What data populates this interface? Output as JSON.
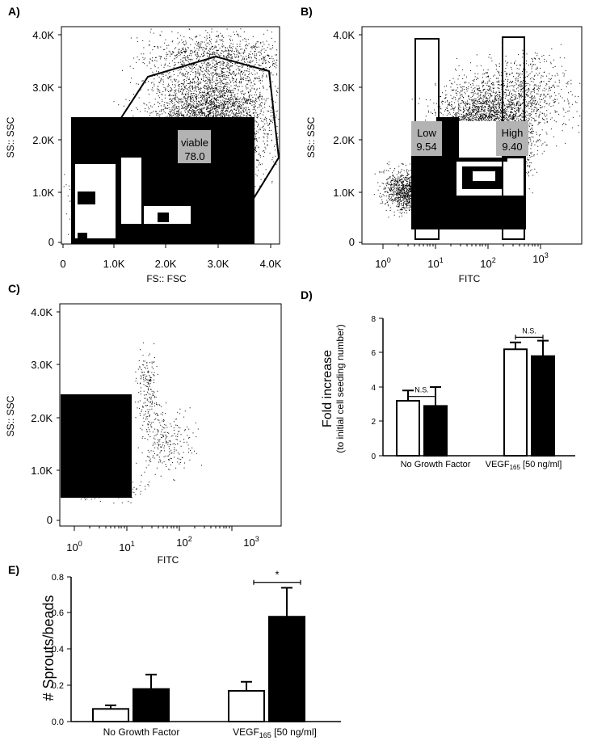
{
  "panels": {
    "A": {
      "label": "A)",
      "ylabel": "SS:: SSC",
      "xlabel": "FS:: FSC",
      "yticks": [
        "4.0K",
        "3.0K",
        "2.0K",
        "1.0K",
        "0"
      ],
      "xticks": [
        "0",
        "1.0K",
        "2.0K",
        "3.0K",
        "4.0K"
      ],
      "gate": {
        "name": "viable",
        "value": "78.0"
      }
    },
    "B": {
      "label": "B)",
      "ylabel": "SS:: SSC",
      "xlabel": "FITC",
      "yticks": [
        "4.0K",
        "3.0K",
        "2.0K",
        "1.0K",
        "0"
      ],
      "xticks": [
        {
          "base": "10",
          "exp": "0"
        },
        {
          "base": "10",
          "exp": "1"
        },
        {
          "base": "10",
          "exp": "2"
        },
        {
          "base": "10",
          "exp": "3"
        }
      ],
      "gates": [
        {
          "name": "Low",
          "value": "9.54"
        },
        {
          "name": "High",
          "value": "9.40"
        }
      ]
    },
    "C": {
      "label": "C)",
      "ylabel": "SS:: SSC",
      "xlabel": "FITC",
      "yticks": [
        "4.0K",
        "3.0K",
        "2.0K",
        "1.0K",
        "0"
      ],
      "xticks": [
        {
          "base": "10",
          "exp": "0"
        },
        {
          "base": "10",
          "exp": "1"
        },
        {
          "base": "10",
          "exp": "2"
        },
        {
          "base": "10",
          "exp": "3"
        }
      ]
    },
    "D": {
      "label": "D)",
      "ylabel_main": "Fold increase",
      "ylabel_sub": "(to initial cell seeding number)",
      "yticks": [
        "8",
        "6",
        "4",
        "2",
        "0"
      ],
      "cat1": "No Growth Factor",
      "cat2_main": "VEGF",
      "cat2_sub": "165",
      "cat2_tail": " [50 ng/ml]",
      "sig": [
        "N.S.",
        "N.S."
      ]
    },
    "E": {
      "label": "E)",
      "ylabel": "# Sprouts/beads",
      "yticks": [
        "0.8",
        "0.6",
        "0.4",
        "0.2",
        "0.0"
      ],
      "cat1": "No Growth Factor",
      "cat2_main": "VEGF",
      "cat2_sub": "165",
      "cat2_tail": " [50 ng/ml]",
      "sig": "*"
    }
  },
  "chart_data": [
    {
      "type": "scatter",
      "panel": "A",
      "xlabel": "FS:: FSC",
      "ylabel": "SS:: SSC",
      "xlim": [
        0,
        4100
      ],
      "ylim": [
        0,
        4100
      ],
      "gate": {
        "name": "viable",
        "percent": 78.0
      }
    },
    {
      "type": "scatter",
      "panel": "B",
      "xlabel": "FITC",
      "ylabel": "SS:: SSC",
      "xscale": "log",
      "xlim": [
        0.5,
        4000
      ],
      "ylim": [
        0,
        4100
      ],
      "gates": [
        {
          "name": "Low",
          "percent": 9.54
        },
        {
          "name": "High",
          "percent": 9.4
        }
      ]
    },
    {
      "type": "scatter",
      "panel": "C",
      "xlabel": "FITC",
      "ylabel": "SS:: SSC",
      "xscale": "log",
      "xlim": [
        0.5,
        4000
      ],
      "ylim": [
        0,
        4100
      ]
    },
    {
      "type": "bar",
      "panel": "D",
      "categories": [
        "No Growth Factor",
        "VEGF165 [50 ng/ml]"
      ],
      "ylabel": "Fold increase (to initial cell seeding number)",
      "ylim": [
        0,
        8
      ],
      "series": [
        {
          "color": "#ffffff",
          "values": [
            3.2,
            6.2
          ],
          "errors": [
            0.6,
            0.4
          ]
        },
        {
          "color": "#000000",
          "values": [
            2.9,
            5.8
          ],
          "errors": [
            1.1,
            0.9
          ]
        }
      ],
      "annotations": [
        {
          "text": "N.S.",
          "category": 0,
          "y": 3.45
        },
        {
          "text": "N.S.",
          "category": 1,
          "y": 6.9
        }
      ]
    },
    {
      "type": "bar",
      "panel": "E",
      "categories": [
        "No Growth Factor",
        "VEGF165 [50 ng/ml]"
      ],
      "ylabel": "# Sprouts/beads",
      "ylim": [
        0,
        0.8
      ],
      "series": [
        {
          "color": "#ffffff",
          "values": [
            0.07,
            0.17
          ],
          "errors": [
            0.02,
            0.05
          ]
        },
        {
          "color": "#000000",
          "values": [
            0.18,
            0.58
          ],
          "errors": [
            0.08,
            0.16
          ]
        }
      ],
      "annotations": [
        {
          "text": "*",
          "category": 1,
          "y": 0.77
        }
      ]
    }
  ]
}
